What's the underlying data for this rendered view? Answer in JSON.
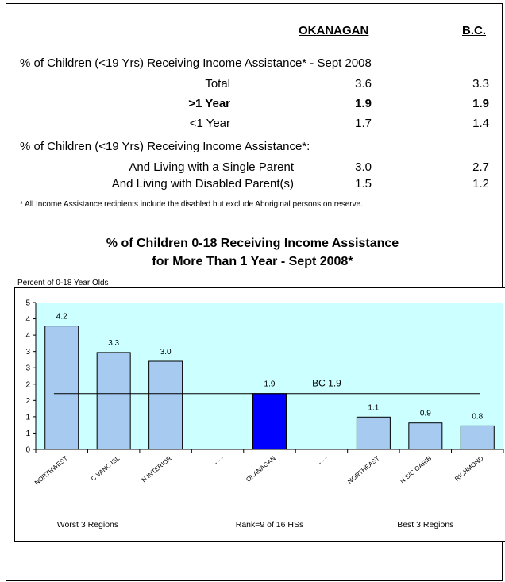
{
  "table": {
    "col_okanagan": "OKANAGAN",
    "col_bc": "B.C.",
    "section1": "% of Children (<19 Yrs) Receiving Income Assistance* - Sept 2008",
    "rows1": [
      {
        "label": "Total",
        "okanagan": "3.6",
        "bc": "3.3",
        "bold": false
      },
      {
        "label": ">1 Year",
        "okanagan": "1.9",
        "bc": "1.9",
        "bold": true
      },
      {
        "label": "<1 Year",
        "okanagan": "1.7",
        "bc": "1.4",
        "bold": false
      }
    ],
    "section2": "% of Children (<19 Yrs) Receiving Income Assistance*:",
    "rows2": [
      {
        "label": "And Living with a Single Parent",
        "okanagan": "3.0",
        "bc": "2.7"
      },
      {
        "label": "And Living with Disabled Parent(s)",
        "okanagan": "1.5",
        "bc": "1.2"
      }
    ],
    "footnote": "* All Income Assistance recipients include the disabled but exclude Aboriginal persons on reserve."
  },
  "chart_data": {
    "type": "bar",
    "title_line1": "% of Children 0-18 Receiving Income Assistance",
    "title_line2": "for More Than 1 Year - Sept 2008*",
    "ylabel": "Percent of 0-18 Year Olds",
    "ylim": [
      0,
      5
    ],
    "y_ticks": [
      "0",
      "1",
      "1",
      "2",
      "2",
      "3",
      "3",
      "4",
      "4",
      "5"
    ],
    "categories": [
      "NORTHWEST",
      "C VANC ISL",
      "N INTERIOR",
      "- - -",
      "OKANAGAN",
      "- - -",
      "NORTHEAST",
      "N S/C GARIB",
      "RICHMOND"
    ],
    "values": [
      4.2,
      3.3,
      3.0,
      null,
      1.9,
      null,
      1.1,
      0.9,
      0.8
    ],
    "value_labels": [
      "4.2",
      "3.3",
      "3.0",
      "",
      "1.9",
      "",
      "1.1",
      "0.9",
      "0.8"
    ],
    "reference_line": {
      "value": 1.9,
      "label": "BC 1.9"
    },
    "group_labels": [
      "Worst 3 Regions",
      "Rank=9 of 16 HSs",
      "Best 3 Regions"
    ],
    "colors": {
      "bar": "#a6caf0",
      "highlight": "#0000ff",
      "plot_bg": "#ccffff"
    },
    "highlight_index": 4
  }
}
